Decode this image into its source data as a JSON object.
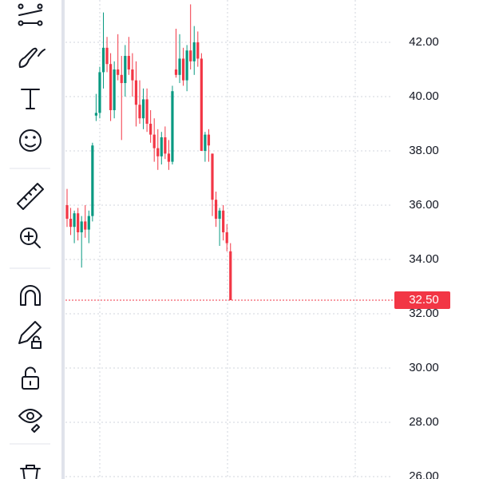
{
  "chart_data": {
    "type": "candlestick",
    "ohlc": [
      [
        36.0,
        36.6,
        35.2,
        35.5
      ],
      [
        35.5,
        35.9,
        34.9,
        35.2
      ],
      [
        35.2,
        35.8,
        34.6,
        35.7
      ],
      [
        35.7,
        35.9,
        34.7,
        35.0
      ],
      [
        35.0,
        35.6,
        33.7,
        35.4
      ],
      [
        35.4,
        36.0,
        34.8,
        35.1
      ],
      [
        35.1,
        35.8,
        34.6,
        35.6
      ],
      [
        35.6,
        38.3,
        35.4,
        38.2
      ],
      [
        39.3,
        40.1,
        39.1,
        39.4
      ],
      [
        39.4,
        41.1,
        39.2,
        40.9
      ],
      [
        40.9,
        43.1,
        40.3,
        41.8
      ],
      [
        41.8,
        42.2,
        40.9,
        41.2
      ],
      [
        41.2,
        41.6,
        39.1,
        39.5
      ],
      [
        39.5,
        41.3,
        39.2,
        41.0
      ],
      [
        41.0,
        42.3,
        40.6,
        40.8
      ],
      [
        40.8,
        41.5,
        38.4,
        40.5
      ],
      [
        40.5,
        41.9,
        40.0,
        41.5
      ],
      [
        41.5,
        42.2,
        40.8,
        41.0
      ],
      [
        41.0,
        41.6,
        40.0,
        40.6
      ],
      [
        40.6,
        41.3,
        38.9,
        39.7
      ],
      [
        39.7,
        40.6,
        39.0,
        39.2
      ],
      [
        39.2,
        40.3,
        38.8,
        39.9
      ],
      [
        39.9,
        40.3,
        38.7,
        39.0
      ],
      [
        39.0,
        39.5,
        38.3,
        38.6
      ],
      [
        38.6,
        39.2,
        37.6,
        38.1
      ],
      [
        38.1,
        38.8,
        37.3,
        37.8
      ],
      [
        37.8,
        38.7,
        37.5,
        38.5
      ],
      [
        38.5,
        38.9,
        37.7,
        37.9
      ],
      [
        37.9,
        38.4,
        37.3,
        37.6
      ],
      [
        37.6,
        40.4,
        37.5,
        40.2
      ],
      [
        41.0,
        42.5,
        40.7,
        40.8
      ],
      [
        40.8,
        42.3,
        40.5,
        41.4
      ],
      [
        41.4,
        41.8,
        40.4,
        40.6
      ],
      [
        40.6,
        41.9,
        40.2,
        41.7
      ],
      [
        41.7,
        43.4,
        41.0,
        41.3
      ],
      [
        41.3,
        42.6,
        40.8,
        42.0
      ],
      [
        42.0,
        42.4,
        41.1,
        41.4
      ],
      [
        41.4,
        41.6,
        38.0,
        38.0
      ],
      [
        38.0,
        38.7,
        37.6,
        38.6
      ],
      [
        38.6,
        38.8,
        37.6,
        38.2
      ],
      [
        37.9,
        37.9,
        35.6,
        36.2
      ],
      [
        36.2,
        36.5,
        35.2,
        35.5
      ],
      [
        35.5,
        35.9,
        34.5,
        35.8
      ],
      [
        35.8,
        36.0,
        34.7,
        35.0
      ],
      [
        35.0,
        35.3,
        34.3,
        34.6
      ],
      [
        34.3,
        34.6,
        32.5,
        32.5
      ]
    ],
    "up_color": "#089981",
    "down_color": "#f23645",
    "ylim": [
      25.91,
      43.56
    ],
    "yticks": [
      {
        "value": 26,
        "label": "26.00"
      },
      {
        "value": 28,
        "label": "28.00"
      },
      {
        "value": 30,
        "label": "30.00"
      },
      {
        "value": 32,
        "label": "32.00"
      },
      {
        "value": 34,
        "label": "34.00"
      },
      {
        "value": 36,
        "label": "36.00"
      },
      {
        "value": 38,
        "label": "38.00"
      },
      {
        "value": 40,
        "label": "40.00"
      },
      {
        "value": 42,
        "label": "42.00"
      }
    ],
    "grid": true,
    "last_price": {
      "value": 32.5,
      "label": "32.50"
    }
  }
}
